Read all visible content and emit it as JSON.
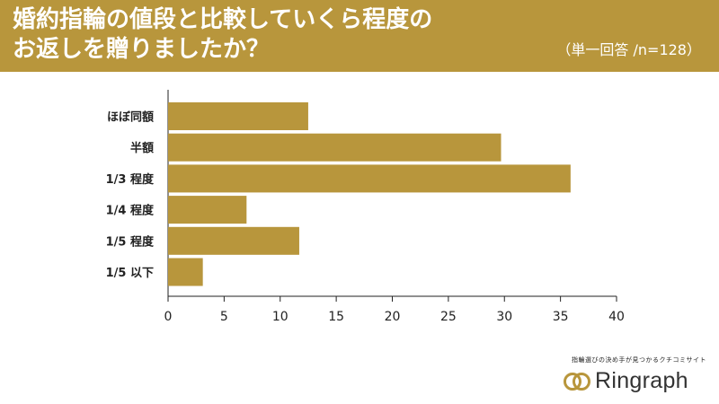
{
  "header": {
    "title_line1": "婚約指輪の値段と比較していくら程度の",
    "title_line2": "お返しを贈りましたか？",
    "subtitle": "（単一回答 /n=128）"
  },
  "brand": {
    "tagline": "指輪選びの決め手が見つかるクチコミサイト",
    "name": "Ringraph",
    "icon": "double-ring-logo"
  },
  "colors": {
    "header": "#b8963c",
    "bar": "#b8963c",
    "text": "#222222"
  },
  "chart_data": {
    "type": "bar",
    "orientation": "horizontal",
    "categories": [
      "ほぼ同額",
      "半額",
      "1/3 程度",
      "1/4 程度",
      "1/5 程度",
      "1/5 以下"
    ],
    "values": [
      12.5,
      29.7,
      35.9,
      7.0,
      11.7,
      3.1
    ],
    "xlim": [
      0,
      40
    ],
    "xticks": [
      0,
      5,
      10,
      15,
      20,
      25,
      30,
      35,
      40
    ],
    "grid": false
  }
}
